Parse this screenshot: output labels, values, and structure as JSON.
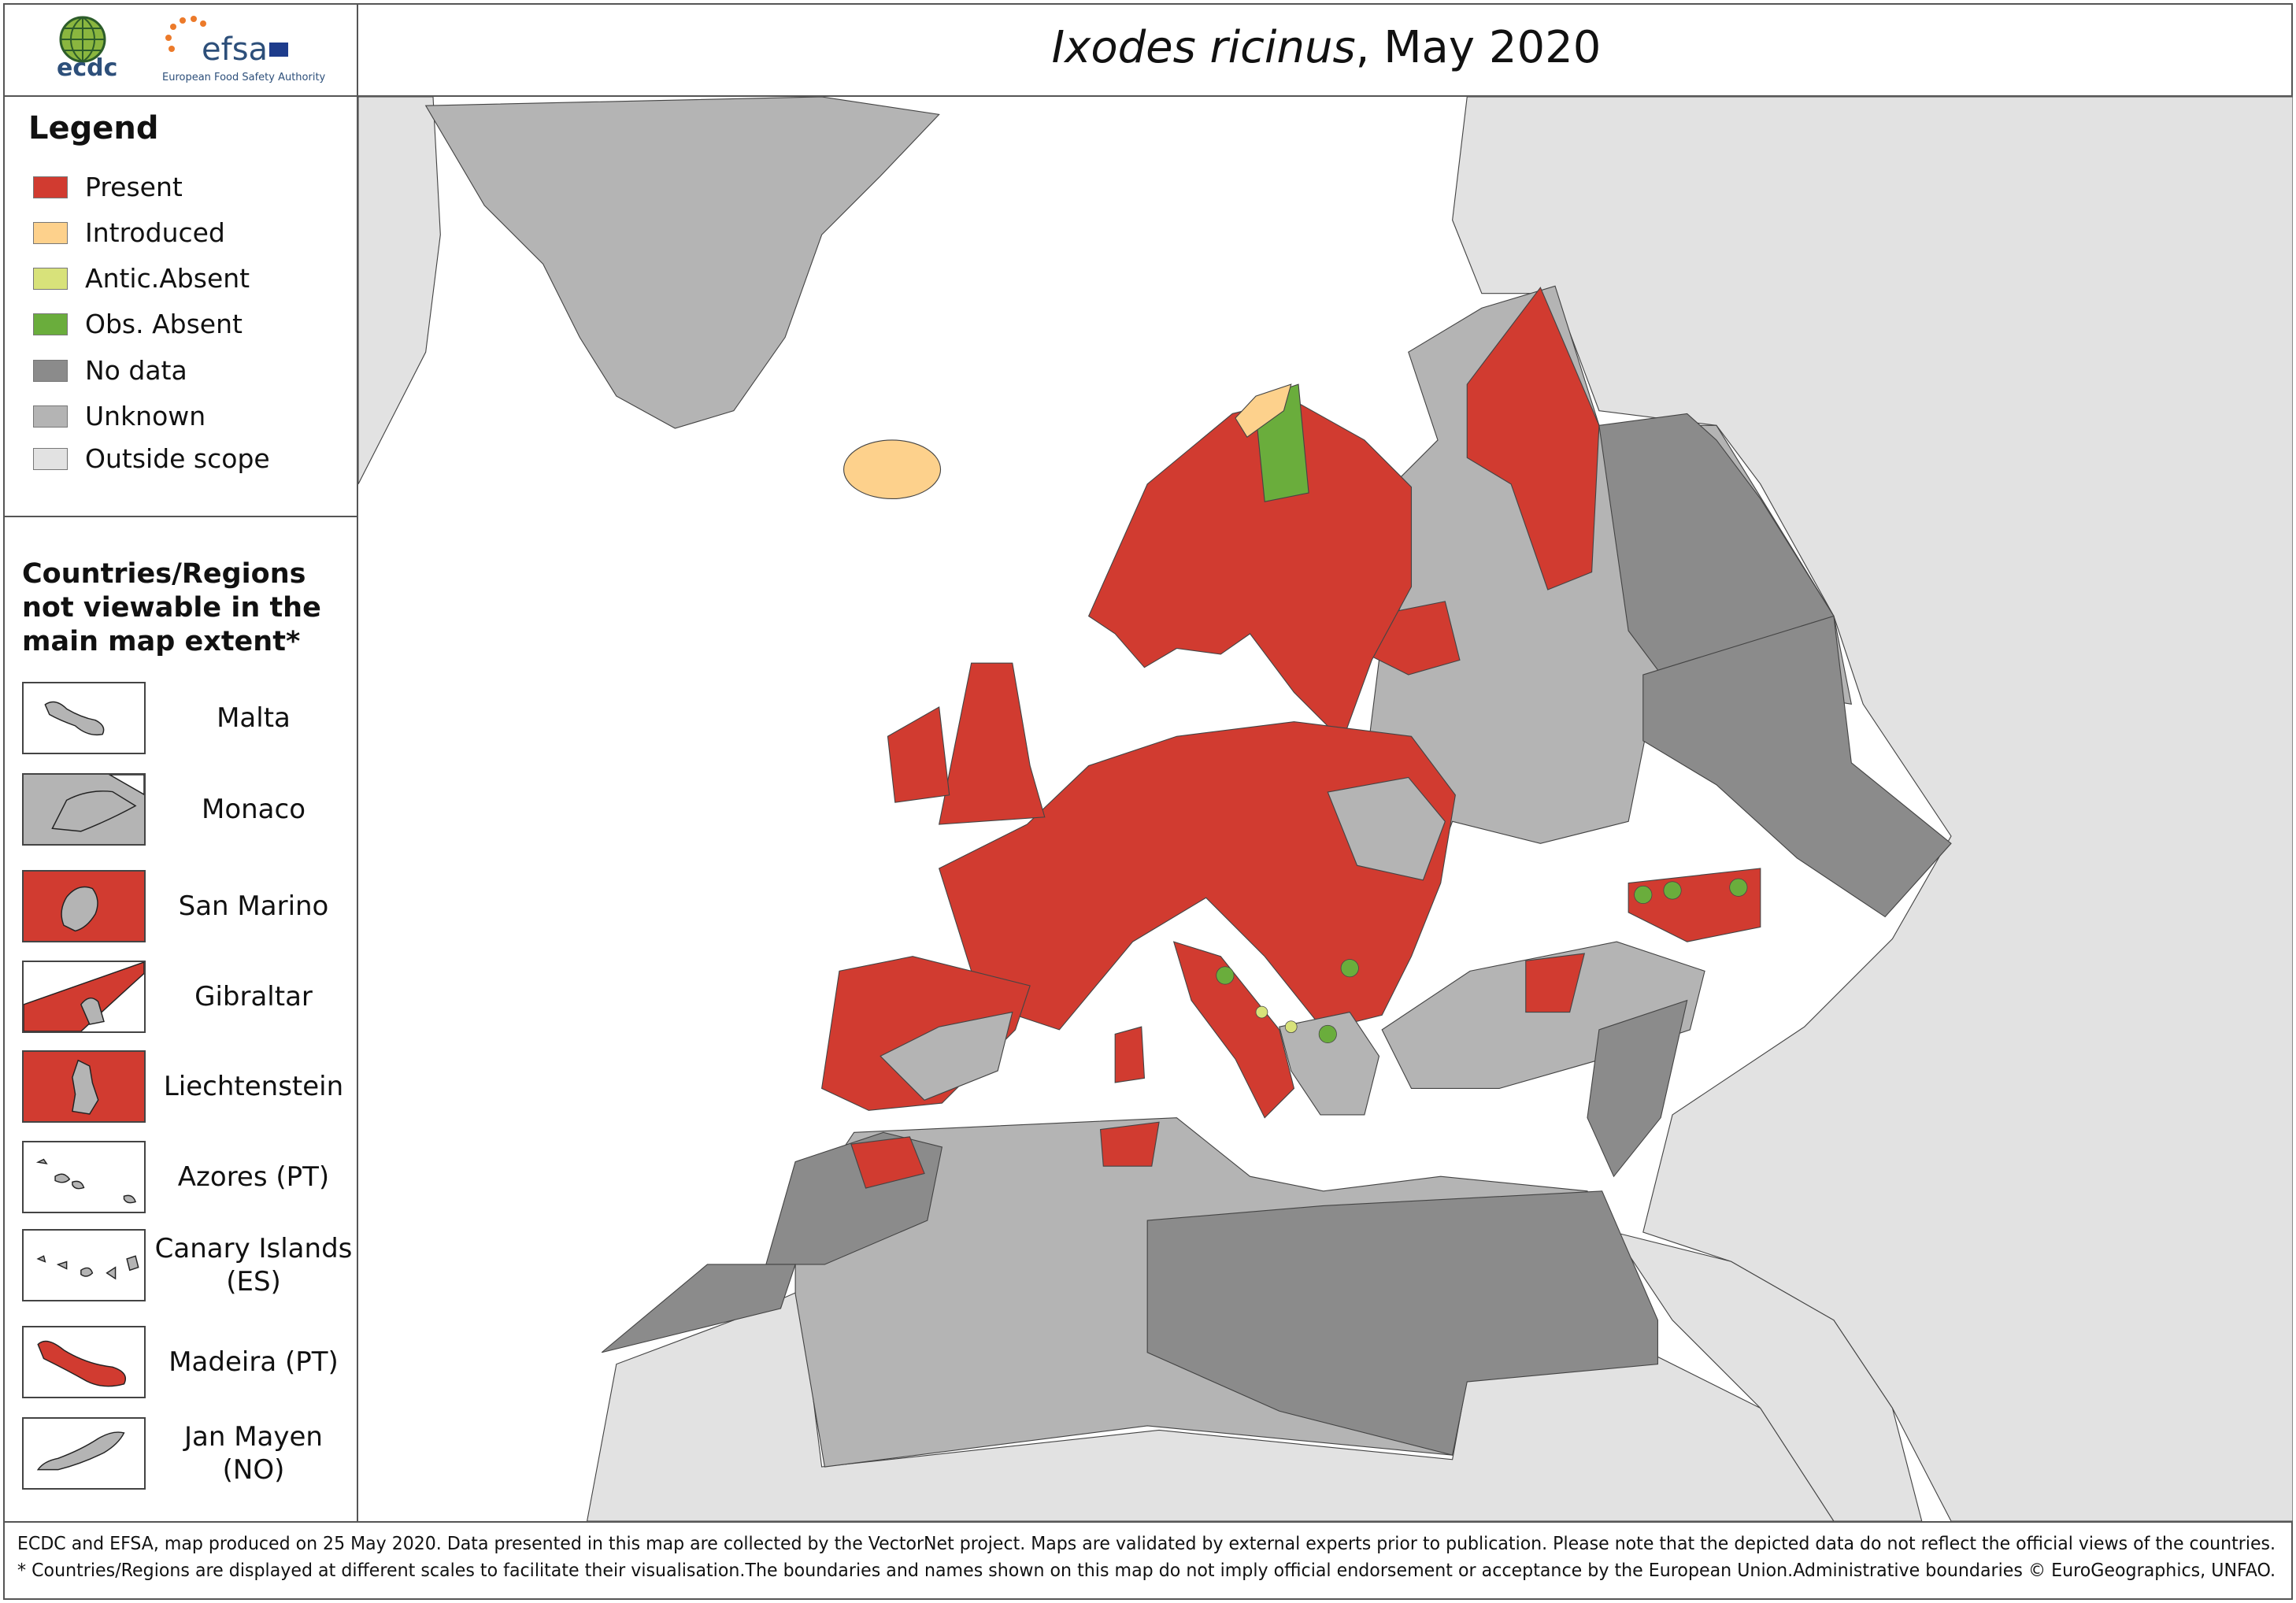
{
  "header": {
    "logos": {
      "ecdc": "ecdc",
      "efsa": "efsa",
      "efsa_subtitle": "European Food Safety Authority"
    },
    "title_italic": "Ixodes ricinus",
    "title_rest": ", May 2020"
  },
  "legend": {
    "title": "Legend",
    "items": [
      {
        "label": "Present",
        "color": "#d13b30"
      },
      {
        "label": "Introduced",
        "color": "#fdd18c"
      },
      {
        "label": "Antic.Absent",
        "color": "#d8e27a"
      },
      {
        "label": "Obs. Absent",
        "color": "#6aad3c"
      },
      {
        "label": "No data",
        "color": "#8b8b8b"
      },
      {
        "label": "Unknown",
        "color": "#b4b4b4"
      },
      {
        "label": "Outside scope",
        "color": "#e2e2e2"
      }
    ]
  },
  "insets": {
    "title_lines": [
      "Countries/Regions",
      "not viewable in the",
      "main map extent*"
    ],
    "items": [
      {
        "label": "Malta"
      },
      {
        "label": "Monaco"
      },
      {
        "label": "San Marino"
      },
      {
        "label": "Gibraltar"
      },
      {
        "label": "Liechtenstein"
      },
      {
        "label": "Azores (PT)"
      },
      {
        "label": "Canary Islands (ES)"
      },
      {
        "label": "Madeira (PT)"
      },
      {
        "label": "Jan Mayen (NO)"
      }
    ]
  },
  "footer": {
    "lines": [
      "ECDC and EFSA, map produced on 25 May 2020. Data presented in this map are collected by the VectorNet project. Maps are validated by external experts prior to publication. Please note that the depicted data do not reflect the official views of the countries.",
      "* Countries/Regions are displayed at different scales to facilitate their visualisation.The boundaries and names shown on this map do not imply official endorsement or acceptance by the European Union.Administrative boundaries © EuroGeographics, UNFAO."
    ]
  }
}
